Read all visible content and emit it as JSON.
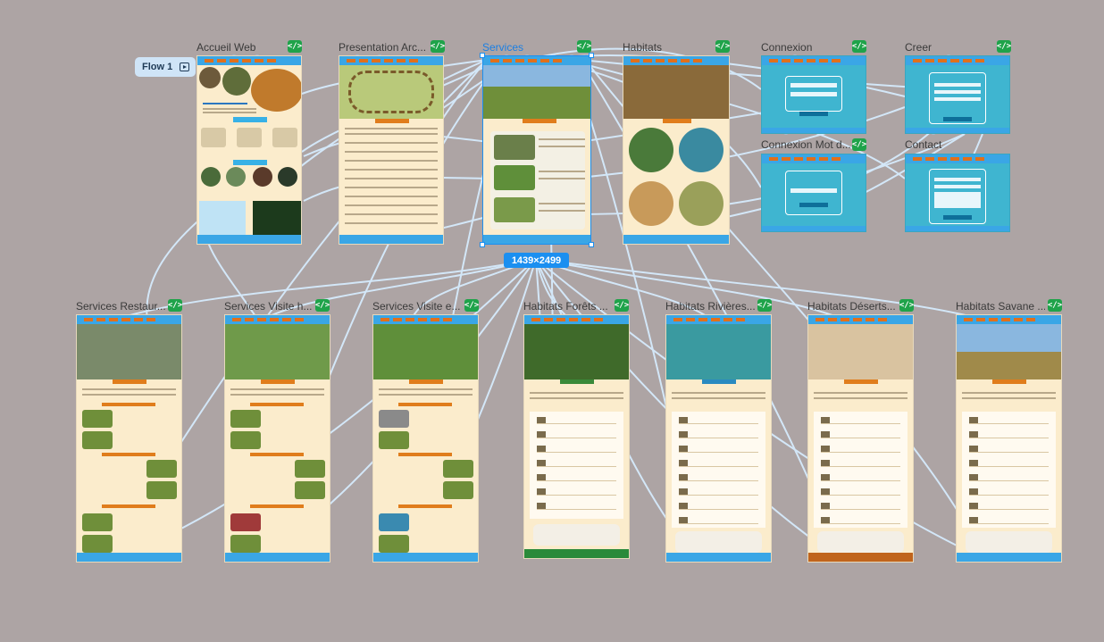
{
  "flow": {
    "label": "Flow 1"
  },
  "selection": {
    "dimensions": "1439×2499"
  },
  "frames": [
    {
      "id": "accueil",
      "title": "Accueil Web",
      "selected": false
    },
    {
      "id": "presentation",
      "title": "Presentation Arc...",
      "selected": false
    },
    {
      "id": "services",
      "title": "Services",
      "selected": true
    },
    {
      "id": "habitats",
      "title": "Habitats",
      "selected": false
    },
    {
      "id": "connexion",
      "title": "Connexion",
      "selected": false
    },
    {
      "id": "creer",
      "title": "Creer",
      "selected": false
    },
    {
      "id": "connexion-mdp",
      "title": "Connexion Mot d...",
      "selected": false
    },
    {
      "id": "contact",
      "title": "Contact",
      "selected": false
    },
    {
      "id": "services-restaurant",
      "title": "Services Restaur...",
      "selected": false
    },
    {
      "id": "services-visite-h",
      "title": "Services Visite h...",
      "selected": false
    },
    {
      "id": "services-visite-e",
      "title": "Services Visite e...",
      "selected": false
    },
    {
      "id": "habitats-forets",
      "title": "Habitats Forêts ...",
      "selected": false
    },
    {
      "id": "habitats-rivieres",
      "title": "Habitats Rivières...",
      "selected": false
    },
    {
      "id": "habitats-deserts",
      "title": "Habitats Déserts...",
      "selected": false
    },
    {
      "id": "habitats-savane",
      "title": "Habitats Savane ...",
      "selected": false
    }
  ],
  "code_badge": "</>",
  "colors": {
    "canvas": "#ada4a4",
    "selection": "#1b8ff0",
    "wire": "#cfe6fb",
    "code_badge": "#1fa34a"
  },
  "icons": [
    "play-flow-icon",
    "code-icon"
  ]
}
